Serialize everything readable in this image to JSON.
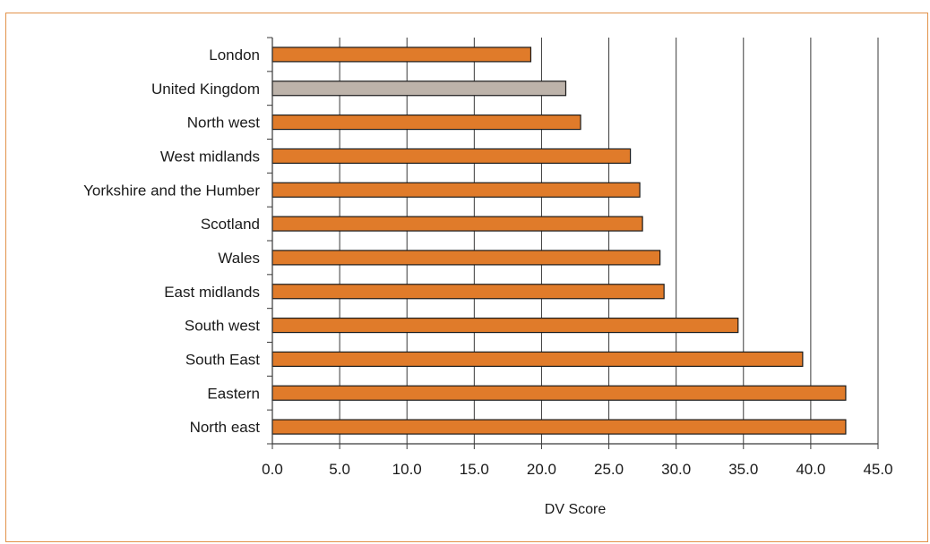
{
  "chart_data": {
    "type": "bar",
    "orientation": "horizontal",
    "categories": [
      "London",
      "United Kingdom",
      "North west",
      "West midlands",
      "Yorkshire and the Humber",
      "Scotland",
      "Wales",
      "East midlands",
      "South west",
      "South East",
      "Eastern",
      "North east"
    ],
    "values": [
      19.2,
      21.8,
      22.9,
      26.6,
      27.3,
      27.5,
      28.8,
      29.1,
      34.6,
      39.4,
      42.6,
      42.6
    ],
    "bar_colors": [
      "#e07b2a",
      "#bdb3aa",
      "#e07b2a",
      "#e07b2a",
      "#e07b2a",
      "#e07b2a",
      "#e07b2a",
      "#e07b2a",
      "#e07b2a",
      "#e07b2a",
      "#e07b2a",
      "#e07b2a"
    ],
    "title": "",
    "xlabel": "DV Score",
    "ylabel": "",
    "xlim": [
      0,
      45
    ],
    "x_ticks": [
      "0.0",
      "5.0",
      "10.0",
      "15.0",
      "20.0",
      "25.0",
      "30.0",
      "35.0",
      "40.0",
      "45.0"
    ],
    "grid": "vertical",
    "legend": "none",
    "colors": {
      "frame_border": "#e2924a",
      "bar_fill": "#e07b2a",
      "highlight_fill": "#bdb3aa",
      "bar_stroke": "#1a1a1a",
      "gridline": "#3a3a3a"
    }
  }
}
